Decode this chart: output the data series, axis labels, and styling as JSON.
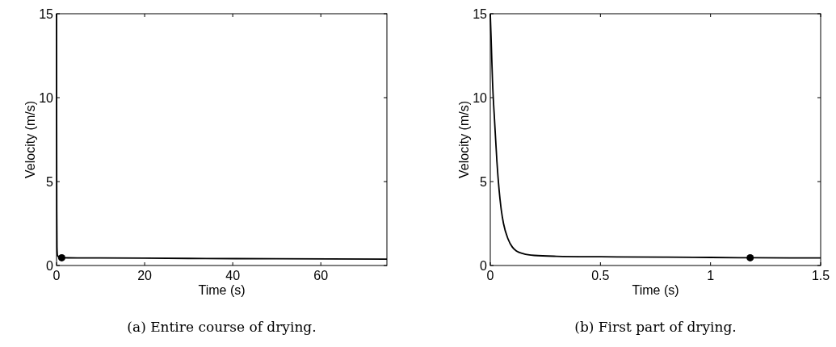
{
  "chart_data": [
    {
      "type": "line",
      "xlabel": "Time (s)",
      "ylabel": "Velocity (m/s)",
      "xlim": [
        0,
        75
      ],
      "xticks": [
        0,
        20,
        40,
        60
      ],
      "ylim": [
        0,
        15
      ],
      "yticks": [
        0,
        5,
        10,
        15
      ],
      "grid": false,
      "annotations": [
        "(a) Entire course of drying."
      ],
      "series": [
        {
          "type": "line",
          "color": "#000000",
          "marker": "none",
          "x": [
            0,
            0.02,
            0.05,
            0.1,
            0.2,
            0.3,
            1.2,
            10,
            30,
            50,
            75
          ],
          "values": [
            15,
            8.5,
            3.3,
            1.1,
            0.6,
            0.55,
            0.46,
            0.45,
            0.42,
            0.4,
            0.38
          ]
        },
        {
          "type": "scatter",
          "color": "#000000",
          "marker": "circle",
          "x": [
            1.18
          ],
          "values": [
            0.46
          ]
        }
      ]
    },
    {
      "type": "line",
      "xlabel": "Time (s)",
      "ylabel": "Velocity (m/s)",
      "xlim": [
        0,
        1.5
      ],
      "xticks": [
        0,
        0.5,
        1,
        1.5
      ],
      "ylim": [
        0,
        15
      ],
      "yticks": [
        0,
        5,
        10,
        15
      ],
      "grid": false,
      "annotations": [
        "(b) First part of drying."
      ],
      "series": [
        {
          "type": "line",
          "color": "#000000",
          "marker": "none",
          "x": [
            0,
            0.005,
            0.01,
            0.02,
            0.03,
            0.04,
            0.05,
            0.06,
            0.08,
            0.1,
            0.12,
            0.15,
            0.2,
            0.3,
            0.5,
            0.8,
            1,
            1.2,
            1.5
          ],
          "values": [
            15,
            13,
            11,
            8.5,
            6.2,
            4.5,
            3.3,
            2.5,
            1.6,
            1.1,
            0.85,
            0.7,
            0.6,
            0.55,
            0.52,
            0.5,
            0.48,
            0.46,
            0.45
          ]
        },
        {
          "type": "scatter",
          "color": "#000000",
          "marker": "circle",
          "x": [
            1.18
          ],
          "values": [
            0.46
          ]
        }
      ]
    }
  ]
}
